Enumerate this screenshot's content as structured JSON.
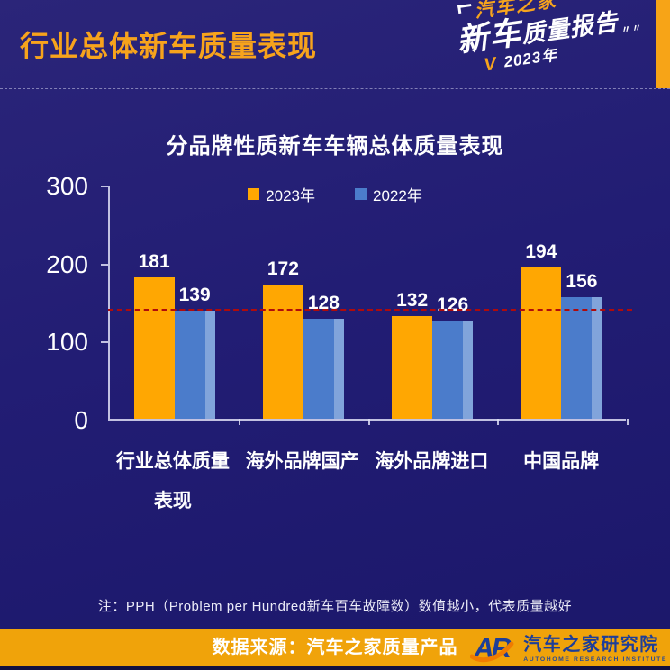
{
  "header": {
    "title": "行业总体新车质量表现",
    "logo": {
      "brand": "汽车之家",
      "title_big": "新车",
      "title_rest": "质量报告",
      "dashes": "〃〃",
      "check": "V",
      "year": "2023年"
    }
  },
  "chart_data": {
    "type": "bar",
    "title": "分品牌性质新车车辆总体质量表现",
    "categories": [
      "行业总体质量\n表现",
      "海外品牌国产",
      "海外品牌进口",
      "中国品牌"
    ],
    "series": [
      {
        "name": "2023年",
        "color": "#FFA702",
        "values": [
          181,
          172,
          132,
          194
        ]
      },
      {
        "name": "2022年",
        "color": "#4B7CCB",
        "values": [
          139,
          128,
          126,
          156
        ]
      }
    ],
    "ylim": [
      0,
      300
    ],
    "yticks": [
      0,
      100,
      200,
      300
    ],
    "reference_line": {
      "value": 139,
      "color": "#B00B0B",
      "style": "dashed"
    },
    "legend_position": "top",
    "grid": false,
    "xlabel": "",
    "ylabel": ""
  },
  "note": "注：PPH（Problem per Hundred新车百车故障数）数值越小，代表质量越好",
  "footer": {
    "source": "数据来源：汽车之家质量产品",
    "logo_text": "AR",
    "org_cn": "汽车之家研究院",
    "org_en": "AUTOHOME  RESEARCH  INSTITUTE"
  },
  "colors": {
    "background": "#221D74",
    "accent_orange": "#F7A417",
    "bar_2023": "#FFA702",
    "bar_2022": "#4B7CCB",
    "reference_red": "#B00B0B",
    "footer_band": "#F0A30A",
    "logo_blue": "#1D3E99"
  }
}
